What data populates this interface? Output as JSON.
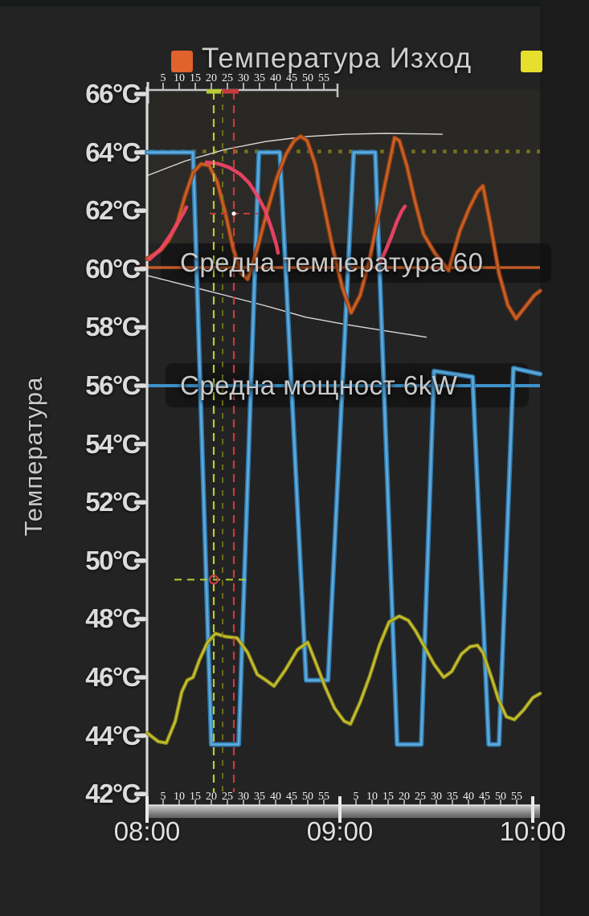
{
  "page": {
    "bg": "#242323",
    "topbar_color": "#171b1b"
  },
  "legend": {
    "items": [
      {
        "label": "Температура Изход",
        "color": "#e0622c"
      },
      {
        "label": "",
        "color": "#e6df2e"
      }
    ]
  },
  "y_axis": {
    "title": "Температура",
    "unit": "°C",
    "min": 42,
    "max": 66,
    "step": 2,
    "labels": [
      "66°C",
      "64°C",
      "62°C",
      "60°C",
      "58°C",
      "56°C",
      "54°C",
      "52°C",
      "50°C",
      "48°C",
      "46°C",
      "44°C",
      "42°C"
    ]
  },
  "x_axis": {
    "hours": [
      "08:00",
      "09:00",
      "10:00"
    ],
    "minor_labels": [
      "5",
      "10",
      "15",
      "20",
      "25",
      "30",
      "35",
      "40",
      "45",
      "50",
      "55"
    ]
  },
  "annotations": {
    "avg_temp_label": "Средна температура 60",
    "avg_power_label": "Средна мощност 6kW"
  },
  "chart_data": {
    "type": "line",
    "x_unit": "minutes after 08:00",
    "y_unit": "°C",
    "x_range": [
      0,
      122.3
    ],
    "y_range": [
      42,
      66
    ],
    "grid": false,
    "legend_position": "top",
    "highlight_color": "#ee4365",
    "series": [
      {
        "id": "temp",
        "name": "Температура Изход",
        "color": "#8f3d16",
        "core": "#cf6426",
        "width": 5.5,
        "core_width": 2.8,
        "points": [
          [
            0,
            60.35
          ],
          [
            4.3,
            60.65
          ],
          [
            6.8,
            61.0
          ],
          [
            9.3,
            61.55
          ],
          [
            11.8,
            62.5
          ],
          [
            14.3,
            63.3
          ],
          [
            16.8,
            63.6
          ],
          [
            19.3,
            63.55
          ],
          [
            21.8,
            63.0
          ],
          [
            24.3,
            61.95
          ],
          [
            26.8,
            60.7
          ],
          [
            29.3,
            59.85
          ],
          [
            31.3,
            59.65
          ],
          [
            34.3,
            60.7
          ],
          [
            37.3,
            61.95
          ],
          [
            40.3,
            63.1
          ],
          [
            43.3,
            63.95
          ],
          [
            45.8,
            64.4
          ],
          [
            47.8,
            64.55
          ],
          [
            49.8,
            64.4
          ],
          [
            52.3,
            63.6
          ],
          [
            54.8,
            62.3
          ],
          [
            57.8,
            60.7
          ],
          [
            60.8,
            59.35
          ],
          [
            63.5,
            58.5
          ],
          [
            66.3,
            59.1
          ],
          [
            69.3,
            60.35
          ],
          [
            71.8,
            61.75
          ],
          [
            74,
            62.9
          ],
          [
            75.8,
            63.85
          ],
          [
            77,
            64.5
          ],
          [
            78.5,
            64.4
          ],
          [
            80.8,
            63.55
          ],
          [
            83.3,
            62.35
          ],
          [
            86,
            61.2
          ],
          [
            89.5,
            60.55
          ],
          [
            93.8,
            59.95
          ],
          [
            97.3,
            61.3
          ],
          [
            100.3,
            62.1
          ],
          [
            102.8,
            62.65
          ],
          [
            104.5,
            62.85
          ],
          [
            106.8,
            61.55
          ],
          [
            109.5,
            59.85
          ],
          [
            112.3,
            58.75
          ],
          [
            114.8,
            58.3
          ],
          [
            118,
            58.75
          ],
          [
            120.5,
            59.1
          ],
          [
            122.3,
            59.25
          ]
        ]
      },
      {
        "id": "power",
        "name": "",
        "color": "#2d7ab0",
        "core": "#64aede",
        "width": 6,
        "core_width": 2.8,
        "points": [
          [
            0,
            64
          ],
          [
            14.3,
            64
          ],
          [
            20,
            43.7
          ],
          [
            28.5,
            43.7
          ],
          [
            34.8,
            64
          ],
          [
            41.3,
            64
          ],
          [
            49.5,
            45.9
          ],
          [
            56.3,
            45.9
          ],
          [
            64.3,
            64
          ],
          [
            71,
            64
          ],
          [
            77.8,
            43.7
          ],
          [
            85.3,
            43.7
          ],
          [
            89.3,
            56.5
          ],
          [
            101.3,
            56.3
          ],
          [
            106.3,
            43.7
          ],
          [
            109.5,
            43.7
          ],
          [
            114,
            56.6
          ],
          [
            122.3,
            56.4
          ]
        ]
      },
      {
        "id": "yellow",
        "name": "",
        "color": "#8f8d1b",
        "core": "#d0c835",
        "width": 4.6,
        "core_width": 2,
        "points": [
          [
            0,
            44.1
          ],
          [
            3.5,
            43.8
          ],
          [
            6,
            43.75
          ],
          [
            8.8,
            44.5
          ],
          [
            10.8,
            45.5
          ],
          [
            12.5,
            45.9
          ],
          [
            14.3,
            46.0
          ],
          [
            16.3,
            46.6
          ],
          [
            18.8,
            47.2
          ],
          [
            21.3,
            47.5
          ],
          [
            24.3,
            47.4
          ],
          [
            28,
            47.35
          ],
          [
            31.3,
            46.85
          ],
          [
            34.3,
            46.1
          ],
          [
            37,
            45.9
          ],
          [
            39.5,
            45.7
          ],
          [
            43,
            46.25
          ],
          [
            46.8,
            46.95
          ],
          [
            50,
            47.2
          ],
          [
            52.5,
            46.5
          ],
          [
            55.3,
            45.7
          ],
          [
            58.3,
            44.95
          ],
          [
            61.3,
            44.5
          ],
          [
            63.3,
            44.4
          ],
          [
            66.3,
            45.15
          ],
          [
            69.3,
            46.05
          ],
          [
            72.3,
            47.1
          ],
          [
            75.3,
            47.9
          ],
          [
            78.5,
            48.1
          ],
          [
            81.3,
            47.95
          ],
          [
            83.5,
            47.6
          ],
          [
            86.3,
            47.05
          ],
          [
            89.3,
            46.45
          ],
          [
            92.3,
            46.0
          ],
          [
            94.8,
            46.2
          ],
          [
            97.8,
            46.8
          ],
          [
            100.5,
            47.05
          ],
          [
            102.8,
            47.1
          ],
          [
            104.5,
            46.85
          ],
          [
            107.3,
            45.95
          ],
          [
            109.3,
            45.25
          ],
          [
            111.8,
            44.65
          ],
          [
            114.3,
            44.55
          ],
          [
            117.3,
            44.9
          ],
          [
            120,
            45.3
          ],
          [
            122.3,
            45.45
          ]
        ]
      },
      {
        "id": "env_upper",
        "name": "",
        "role": "envelope",
        "color": "#e9e9e9",
        "width": 1.4,
        "points": [
          [
            0,
            63.2
          ],
          [
            11.8,
            63.7
          ],
          [
            24.3,
            64.1
          ],
          [
            36.8,
            64.37
          ],
          [
            49.3,
            64.54
          ],
          [
            61.8,
            64.62
          ],
          [
            74.3,
            64.65
          ],
          [
            86.8,
            64.63
          ],
          [
            92,
            64.62
          ]
        ]
      },
      {
        "id": "env_lower",
        "name": "",
        "role": "envelope",
        "color": "#e9e9e9",
        "width": 1.4,
        "points": [
          [
            0,
            59.78
          ],
          [
            11.8,
            59.45
          ],
          [
            24.3,
            59.1
          ],
          [
            36.8,
            58.74
          ],
          [
            49.3,
            58.35
          ],
          [
            61.8,
            58.1
          ],
          [
            74.3,
            57.88
          ],
          [
            87,
            57.66
          ]
        ]
      }
    ],
    "reference_lines": [
      {
        "label": "64°C dotted",
        "value": 64.03,
        "color": "#76731f",
        "width": 4.5,
        "dash": "4.5 8.5"
      },
      {
        "label": "Средна температура 60",
        "value": 60.05,
        "color": "#c05a28",
        "width": 3.5
      },
      {
        "label": "Средна мощност 6kW",
        "value": 56,
        "color": "#3f93c9",
        "width": 4
      }
    ],
    "highlight_strokes": [
      {
        "points": [
          [
            0.75,
            60.33
          ],
          [
            4.25,
            60.69
          ],
          [
            7.25,
            61.16
          ],
          [
            9.75,
            61.62
          ],
          [
            11.5,
            61.95
          ],
          [
            12.25,
            62.12
          ]
        ]
      },
      {
        "points": [
          [
            18.5,
            63.66
          ],
          [
            22.25,
            63.61
          ],
          [
            25.75,
            63.47
          ],
          [
            29,
            63.25
          ],
          [
            31.75,
            62.95
          ],
          [
            34.25,
            62.53
          ],
          [
            36.75,
            62.01
          ],
          [
            38.75,
            61.38
          ],
          [
            40.25,
            60.83
          ],
          [
            40.75,
            60.55
          ]
        ]
      },
      {
        "points": [
          [
            72.5,
            60.22
          ],
          [
            74.25,
            60.64
          ],
          [
            76,
            61.11
          ],
          [
            77.75,
            61.63
          ],
          [
            79.25,
            61.99
          ],
          [
            80.25,
            62.15
          ]
        ]
      }
    ],
    "crosshair": {
      "vertical_lines": [
        {
          "t": 20.75,
          "color": "#b6cc35",
          "dash": "10 7",
          "width": 2.2,
          "opacity": 1
        },
        {
          "t": 23.5,
          "color": "#84841f",
          "dash": "7 9",
          "width": 2,
          "opacity": 0.75
        },
        {
          "t": 27,
          "color": "#c53c3c",
          "dash": "10 7",
          "width": 2.2,
          "opacity": 1
        }
      ],
      "h_segments": [
        {
          "T": 61.9,
          "t1": 19.5,
          "t2": 34.5,
          "color": "#c53c3c",
          "dash": "8 6"
        },
        {
          "T": 49.35,
          "t1": 8.5,
          "t2": 32,
          "color": "#b6cc35",
          "dash": "9 7"
        }
      ],
      "markers": [
        {
          "type": "ring",
          "t": 20.75,
          "T": 49.35,
          "color": "#d24040"
        },
        {
          "type": "dot",
          "t": 27,
          "T": 61.9,
          "color": "#ffffff"
        }
      ],
      "ruler_marks": [
        {
          "t1": 18.5,
          "t2": 23,
          "color": "#b6cc35"
        },
        {
          "t1": 23.25,
          "t2": 28.5,
          "color": "#c53c3c"
        }
      ]
    }
  }
}
